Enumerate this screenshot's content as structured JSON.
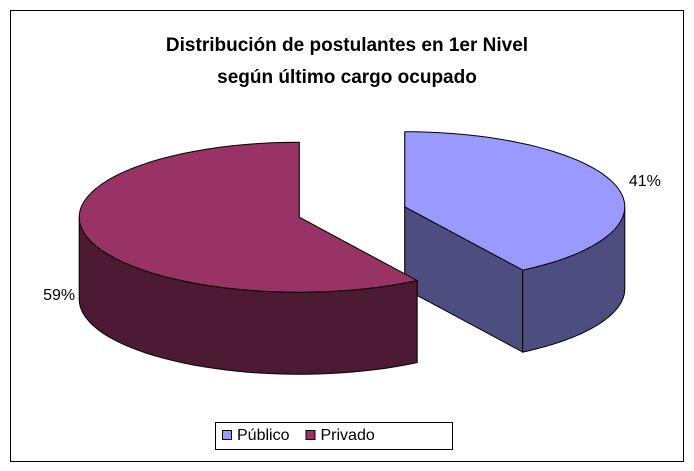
{
  "chart_data": {
    "type": "pie",
    "title": [
      "Distribución de postulantes en 1er Nivel",
      "según último cargo ocupado"
    ],
    "categories": [
      "Público",
      "Privado"
    ],
    "values": [
      41,
      59
    ],
    "value_labels": [
      "41%",
      "59%"
    ],
    "colors": [
      "#9999ff",
      "#993366"
    ],
    "legend": "bottom",
    "three_d": true,
    "exploded": true
  }
}
